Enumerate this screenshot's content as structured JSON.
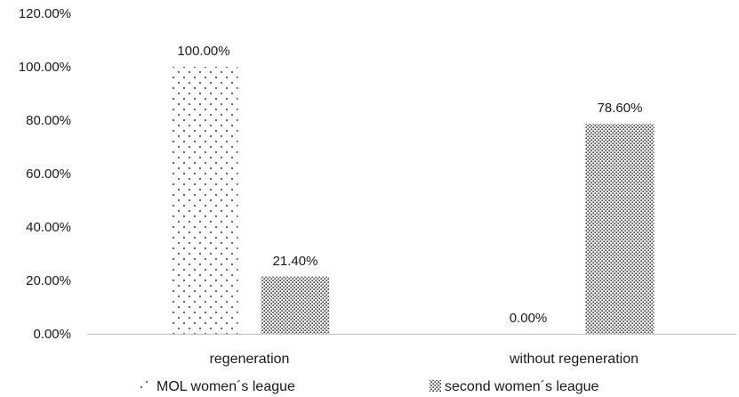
{
  "chart_data": {
    "type": "bar",
    "categories": [
      "regeneration",
      "without regeneration"
    ],
    "series": [
      {
        "name": "MOL women´s league",
        "values": [
          100.0,
          0.0
        ],
        "labels": [
          "100.00%",
          "0.00%"
        ]
      },
      {
        "name": "second women´s league",
        "values": [
          21.4,
          78.6
        ],
        "labels": [
          "21.40%",
          "78.60%"
        ]
      }
    ],
    "y_ticks": [
      "0.00%",
      "20.00%",
      "40.00%",
      "60.00%",
      "80.00%",
      "100.00%",
      "120.00%"
    ],
    "ylim": [
      0,
      120
    ],
    "grid": false,
    "legend_position": "bottom",
    "title": "",
    "xlabel": "",
    "ylabel": ""
  }
}
